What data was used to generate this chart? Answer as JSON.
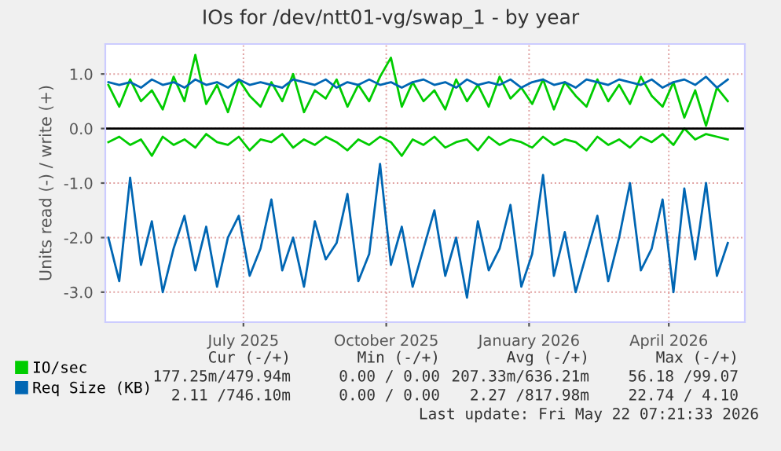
{
  "chart_data": {
    "type": "line",
    "title": "IOs for /dev/ntt01-vg/swap_1 - by year",
    "ylabel": "Units read (-) / write (+)",
    "x": [
      "2025-04-05",
      "2025-04-12",
      "2025-04-19",
      "2025-04-26",
      "2025-05-03",
      "2025-05-10",
      "2025-05-17",
      "2025-05-24",
      "2025-05-31",
      "2025-06-07",
      "2025-06-14",
      "2025-06-21",
      "2025-06-28",
      "2025-07-05",
      "2025-07-12",
      "2025-07-19",
      "2025-07-26",
      "2025-08-02",
      "2025-08-09",
      "2025-08-16",
      "2025-08-23",
      "2025-08-30",
      "2025-09-06",
      "2025-09-13",
      "2025-09-20",
      "2025-09-27",
      "2025-10-04",
      "2025-10-11",
      "2025-10-18",
      "2025-10-25",
      "2025-11-01",
      "2025-11-08",
      "2025-11-15",
      "2025-11-22",
      "2025-11-29",
      "2025-12-06",
      "2025-12-13",
      "2025-12-20",
      "2025-12-27",
      "2026-01-03",
      "2026-01-10",
      "2026-01-17",
      "2026-01-24",
      "2026-01-31",
      "2026-02-07",
      "2026-02-14",
      "2026-02-21",
      "2026-02-28",
      "2026-03-07",
      "2026-03-14",
      "2026-03-21",
      "2026-03-28",
      "2026-04-04",
      "2026-04-11",
      "2026-04-18",
      "2026-04-25",
      "2026-05-02",
      "2026-05-09"
    ],
    "series": [
      {
        "name": "IO/sec",
        "color": "#00cc00",
        "values": [
          0.8,
          0.4,
          0.9,
          0.5,
          0.7,
          0.35,
          0.95,
          0.5,
          1.35,
          0.45,
          0.8,
          0.3,
          0.9,
          0.6,
          0.4,
          0.85,
          0.5,
          1.0,
          0.3,
          0.7,
          0.55,
          0.9,
          0.4,
          0.8,
          0.5,
          0.95,
          1.3,
          0.4,
          0.85,
          0.5,
          0.7,
          0.35,
          0.9,
          0.5,
          0.8,
          0.4,
          0.95,
          0.55,
          0.75,
          0.45,
          0.9,
          0.35,
          0.85,
          0.6,
          0.4,
          0.9,
          0.5,
          0.8,
          0.45,
          0.95,
          0.6,
          0.4,
          0.85,
          0.2,
          0.7,
          0.05,
          0.75,
          0.5
        ]
      },
      {
        "name": "Req Size (KB)",
        "color": "#0066b3",
        "values": [
          0.85,
          0.8,
          0.85,
          0.75,
          0.9,
          0.8,
          0.85,
          0.75,
          0.9,
          0.8,
          0.85,
          0.75,
          0.9,
          0.8,
          0.85,
          0.8,
          0.75,
          0.9,
          0.85,
          0.8,
          0.9,
          0.75,
          0.85,
          0.8,
          0.9,
          0.8,
          0.85,
          0.75,
          0.85,
          0.9,
          0.8,
          0.85,
          0.75,
          0.9,
          0.8,
          0.85,
          0.8,
          0.9,
          0.75,
          0.85,
          0.9,
          0.8,
          0.85,
          0.75,
          0.9,
          0.85,
          0.8,
          0.9,
          0.85,
          0.8,
          0.9,
          0.75,
          0.85,
          0.9,
          0.8,
          0.95,
          0.75,
          0.9
        ]
      },
      {
        "color": "#00cc00",
        "values": [
          -0.25,
          -0.15,
          -0.3,
          -0.2,
          -0.5,
          -0.15,
          -0.3,
          -0.2,
          -0.35,
          -0.1,
          -0.25,
          -0.3,
          -0.15,
          -0.4,
          -0.2,
          -0.25,
          -0.1,
          -0.35,
          -0.2,
          -0.3,
          -0.15,
          -0.25,
          -0.4,
          -0.2,
          -0.3,
          -0.15,
          -0.25,
          -0.5,
          -0.2,
          -0.3,
          -0.15,
          -0.35,
          -0.25,
          -0.2,
          -0.4,
          -0.15,
          -0.3,
          -0.2,
          -0.25,
          -0.35,
          -0.15,
          -0.3,
          -0.2,
          -0.25,
          -0.4,
          -0.15,
          -0.3,
          -0.2,
          -0.35,
          -0.15,
          -0.25,
          -0.1,
          -0.3,
          0.0,
          -0.2,
          -0.1,
          -0.15,
          -0.2
        ]
      },
      {
        "color": "#0066b3",
        "values": [
          -2.0,
          -2.8,
          -0.9,
          -2.5,
          -1.7,
          -3.0,
          -2.2,
          -1.6,
          -2.6,
          -1.8,
          -2.9,
          -2.0,
          -1.6,
          -2.7,
          -2.2,
          -1.3,
          -2.6,
          -2.0,
          -2.9,
          -1.7,
          -2.4,
          -2.1,
          -1.2,
          -2.8,
          -2.3,
          -0.65,
          -2.5,
          -1.8,
          -2.9,
          -2.2,
          -1.5,
          -2.7,
          -2.0,
          -3.1,
          -1.7,
          -2.6,
          -2.2,
          -1.4,
          -2.9,
          -2.3,
          -0.85,
          -2.7,
          -1.9,
          -3.0,
          -2.3,
          -1.6,
          -2.8,
          -2.0,
          -1.0,
          -2.6,
          -2.2,
          -1.3,
          -3.0,
          -1.1,
          -2.4,
          -1.0,
          -2.7,
          -2.1
        ]
      }
    ],
    "xlim": [
      "2025-04-03",
      "2026-05-20"
    ],
    "xticks": [
      {
        "value": "2025-07-01",
        "label": "July 2025"
      },
      {
        "value": "2025-10-01",
        "label": "October 2025"
      },
      {
        "value": "2026-01-01",
        "label": "January 2026"
      },
      {
        "value": "2026-04-01",
        "label": "April 2026"
      }
    ],
    "ylim": [
      -3.55,
      1.55
    ],
    "yticks": [
      {
        "value": -3,
        "label": "-3.0"
      },
      {
        "value": -2,
        "label": "-2.0"
      },
      {
        "value": -1,
        "label": "-1.0"
      },
      {
        "value": 0,
        "label": "0.0"
      },
      {
        "value": 1,
        "label": "1.0"
      }
    ],
    "ref_lines": [
      {
        "axis": "y",
        "value": 0,
        "color": "#000000"
      }
    ],
    "grid": true,
    "legend": "bottom",
    "marker": "none",
    "line_style": "solid",
    "annotations": [
      "Cur (-/+)",
      "Min (-/+)",
      "Avg (-/+)",
      "Max (-/+)",
      "177.25m/479.94m",
      "0.00 / 0.00",
      "207.33m/636.21m",
      "56.18 /99.07",
      "2.11 /746.10m",
      "0.00 / 0.00",
      "2.27 /817.98m",
      "22.74 / 4.10",
      "Last update: Fri May 22 07:21:33 2026"
    ]
  }
}
